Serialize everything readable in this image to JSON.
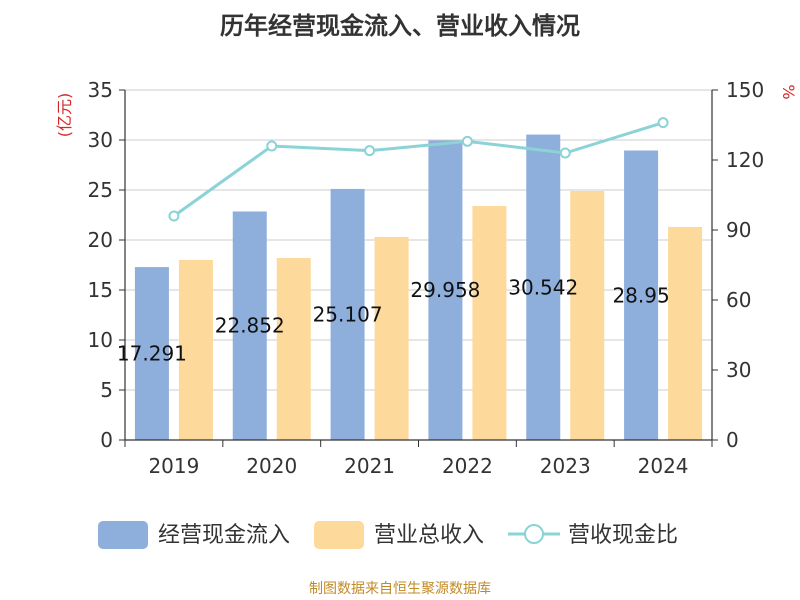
{
  "chart_data": {
    "type": "bar",
    "title": "历年经营现金流入、营业收入情况",
    "categories": [
      "2019",
      "2020",
      "2021",
      "2022",
      "2023",
      "2024"
    ],
    "series": [
      {
        "name": "经营现金流入",
        "kind": "bar",
        "axis": "left",
        "color": "#8eaedb",
        "values": [
          17.291,
          22.852,
          25.107,
          29.958,
          30.542,
          28.95
        ],
        "labels": [
          "17.291",
          "22.852",
          "25.107",
          "29.958",
          "30.542",
          "28.95"
        ]
      },
      {
        "name": "营业总收入",
        "kind": "bar",
        "axis": "left",
        "color": "#fdd99b",
        "values": [
          18.0,
          18.2,
          20.3,
          23.4,
          24.9,
          21.3
        ]
      },
      {
        "name": "营收现金比",
        "kind": "line",
        "axis": "right",
        "color": "#8ad3d6",
        "values": [
          96,
          126,
          124,
          128,
          123,
          136
        ]
      }
    ],
    "y_left": {
      "unit": "(亿元)",
      "min": 0,
      "max": 35,
      "ticks": [
        "0",
        "5",
        "10",
        "15",
        "20",
        "25",
        "30",
        "35"
      ]
    },
    "y_right": {
      "unit": "%",
      "min": 0,
      "max": 150,
      "ticks": [
        "0",
        "30",
        "60",
        "90",
        "120",
        "150"
      ]
    },
    "grid": true,
    "legend": "bottom"
  },
  "source": "制图数据来自恒生聚源数据库"
}
